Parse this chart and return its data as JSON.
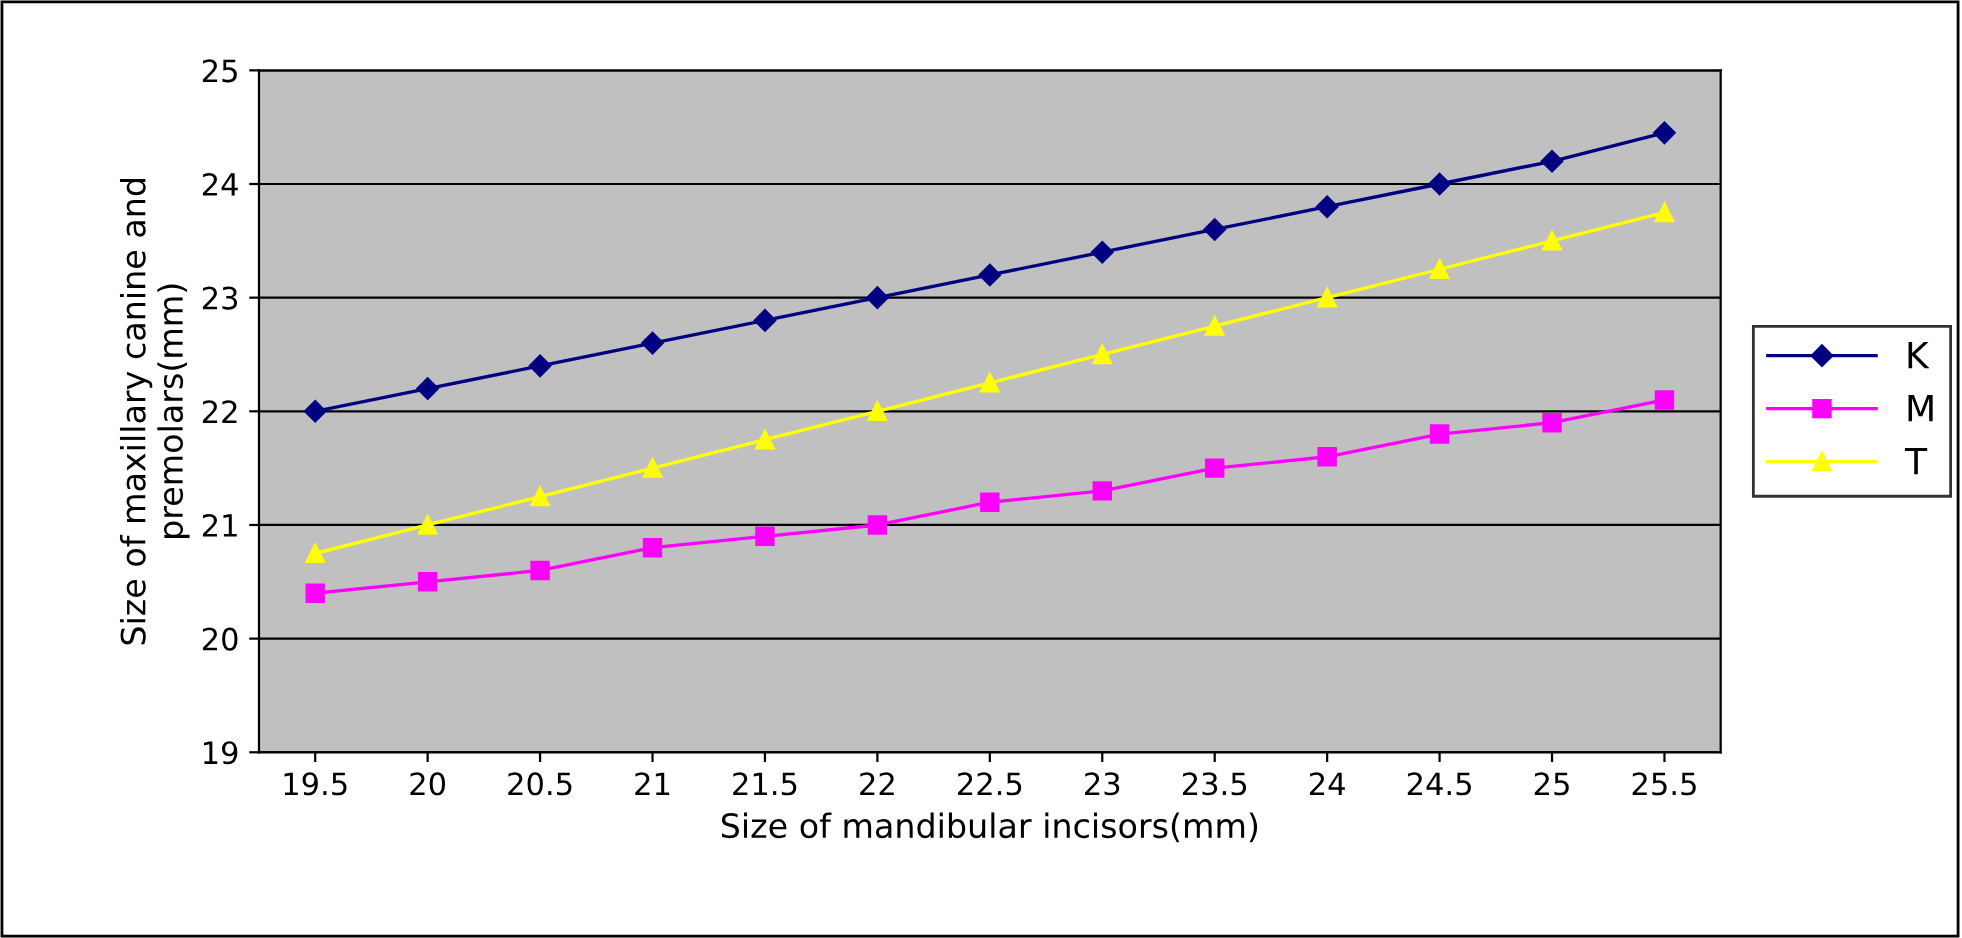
{
  "chart_data": {
    "type": "line",
    "xlabel": "Size of mandibular incisors(mm)",
    "ylabel": "Size of maxillary canine and\npremolars(mm)",
    "categories": [
      "19.5",
      "20",
      "20.5",
      "21",
      "21.5",
      "22",
      "22.5",
      "23",
      "23.5",
      "24",
      "24.5",
      "25",
      "25.5"
    ],
    "series": [
      {
        "name": "K",
        "color": "#000080",
        "marker": "diamond",
        "values": [
          22.0,
          22.2,
          22.4,
          22.6,
          22.8,
          23.0,
          23.2,
          23.4,
          23.6,
          23.8,
          24.0,
          24.2,
          24.45
        ]
      },
      {
        "name": "M",
        "color": "#ff00ff",
        "marker": "square",
        "values": [
          20.4,
          20.5,
          20.6,
          20.8,
          20.9,
          21.0,
          21.2,
          21.3,
          21.5,
          21.6,
          21.8,
          21.9,
          22.1
        ]
      },
      {
        "name": "T",
        "color": "#ffff00",
        "marker": "triangle",
        "values": [
          20.75,
          21.0,
          21.25,
          21.5,
          21.75,
          22.0,
          22.25,
          22.5,
          22.75,
          23.0,
          23.25,
          23.5,
          23.75
        ]
      }
    ],
    "ylim": [
      19,
      25
    ],
    "yticks": [
      19,
      20,
      21,
      22,
      23,
      24,
      25
    ],
    "grid": "y",
    "legend": "right",
    "line_style": "solid"
  }
}
